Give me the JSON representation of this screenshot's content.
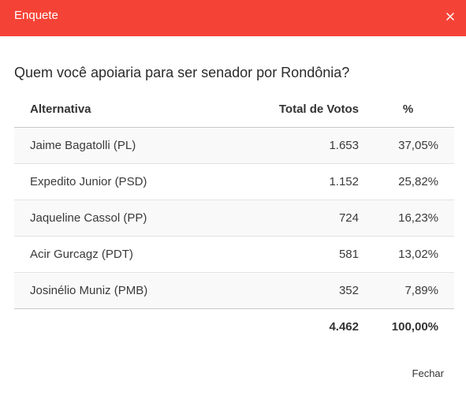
{
  "header": {
    "title": "Enquete",
    "close_icon": "close-icon"
  },
  "question": "Quem você apoiaria para ser senador por Rondônia?",
  "table": {
    "columns": {
      "alternative": "Alternativa",
      "votes": "Total de Votos",
      "percent": "%"
    },
    "rows": [
      {
        "name": "Jaime Bagatolli (PL)",
        "votes": "1.653",
        "percent": "37,05%"
      },
      {
        "name": "Expedito Junior (PSD)",
        "votes": "1.152",
        "percent": "25,82%"
      },
      {
        "name": "Jaqueline Cassol (PP)",
        "votes": "724",
        "percent": "16,23%"
      },
      {
        "name": "Acir Gurcagz (PDT)",
        "votes": "581",
        "percent": "13,02%"
      },
      {
        "name": "Josinélio Muniz (PMB)",
        "votes": "352",
        "percent": "7,89%"
      }
    ],
    "total": {
      "votes": "4.462",
      "percent": "100,00%"
    }
  },
  "footer": {
    "close_label": "Fechar"
  },
  "colors": {
    "header_bg": "#f44336",
    "header_text": "#ffffff"
  }
}
